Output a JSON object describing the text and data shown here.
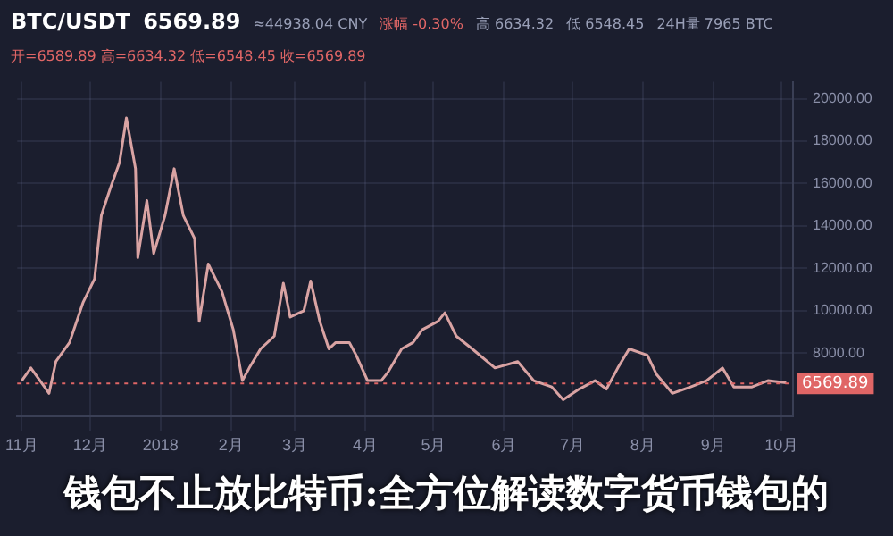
{
  "chart_data": {
    "type": "line",
    "title": "钱包不止放比特币:全方位解读数字货币钱包的",
    "annotations": [
      "BTC/USDT",
      "6569.89",
      "≈44938.04 CNY",
      "涨幅 -0.30%",
      "高 6634.32",
      "低 6548.45",
      "24H量 7965 BTC",
      "开=6589.89 高=6634.32 低=6548.45 收=6569.89"
    ],
    "x": [
      "2017-11-01",
      "2017-11-05",
      "2017-11-11",
      "2017-11-13",
      "2017-11-16",
      "2017-11-22",
      "2017-11-28",
      "2017-12-03",
      "2017-12-06",
      "2017-12-10",
      "2017-12-14",
      "2017-12-17",
      "2017-12-21",
      "2017-12-22",
      "2017-12-26",
      "2017-12-29",
      "2018-01-03",
      "2018-01-07",
      "2018-01-11",
      "2018-01-16",
      "2018-01-18",
      "2018-01-22",
      "2018-01-28",
      "2018-02-02",
      "2018-02-06",
      "2018-02-09",
      "2018-02-14",
      "2018-02-20",
      "2018-02-24",
      "2018-02-27",
      "2018-03-05",
      "2018-03-08",
      "2018-03-12",
      "2018-03-16",
      "2018-03-19",
      "2018-03-25",
      "2018-03-28",
      "2018-04-02",
      "2018-04-08",
      "2018-04-11",
      "2018-04-17",
      "2018-04-22",
      "2018-04-26",
      "2018-05-03",
      "2018-05-06",
      "2018-05-11",
      "2018-05-18",
      "2018-05-28",
      "2018-06-07",
      "2018-06-14",
      "2018-06-22",
      "2018-06-27",
      "2018-07-04",
      "2018-07-11",
      "2018-07-16",
      "2018-07-21",
      "2018-07-26",
      "2018-08-03",
      "2018-08-07",
      "2018-08-14",
      "2018-08-22",
      "2018-08-29",
      "2018-09-05",
      "2018-09-10",
      "2018-09-18",
      "2018-09-25",
      "2018-10-03"
    ],
    "series": [
      {
        "color": "#d9a3a3",
        "values": [
          6700,
          7300,
          6400,
          6100,
          7600,
          8500,
          10400,
          11500,
          14500,
          15800,
          17000,
          19100,
          16700,
          12500,
          15200,
          12700,
          14500,
          16700,
          14500,
          13400,
          9500,
          12200,
          10900,
          9100,
          6700,
          7300,
          8200,
          8800,
          11300,
          9700,
          10000,
          11400,
          9500,
          8200,
          8500,
          8500,
          7900,
          6700,
          6700,
          7100,
          8200,
          8500,
          9100,
          9500,
          9900,
          8800,
          8200,
          7300,
          7600,
          6700,
          6400,
          5800,
          6300,
          6700,
          6300,
          7300,
          8200,
          7900,
          7000,
          6100,
          6400,
          6700,
          7300,
          6400,
          6400,
          6700,
          6600
        ]
      }
    ],
    "xlim": [
      "2017-10-30",
      "2018-10-06"
    ],
    "xticks": [
      {
        "value": "2017-11-01",
        "label": "11月"
      },
      {
        "value": "2017-12-01",
        "label": "12月"
      },
      {
        "value": "2018-01-01",
        "label": "2018"
      },
      {
        "value": "2018-02-01",
        "label": "2月"
      },
      {
        "value": "2018-03-01",
        "label": "3月"
      },
      {
        "value": "2018-04-01",
        "label": "4月"
      },
      {
        "value": "2018-05-01",
        "label": "5月"
      },
      {
        "value": "2018-06-01",
        "label": "6月"
      },
      {
        "value": "2018-07-01",
        "label": "7月"
      },
      {
        "value": "2018-08-01",
        "label": "8月"
      },
      {
        "value": "2018-09-01",
        "label": "9月"
      },
      {
        "value": "2018-10-01",
        "label": "10月"
      }
    ],
    "ylim": [
      5000,
      20800
    ],
    "yticks": [
      {
        "value": 8000,
        "label": "8000.00"
      },
      {
        "value": 10000,
        "label": "10000.00"
      },
      {
        "value": 12000,
        "label": "12000.00"
      },
      {
        "value": 14000,
        "label": "14000.00"
      },
      {
        "value": 16000,
        "label": "16000.00"
      },
      {
        "value": 18000,
        "label": "18000.00"
      },
      {
        "value": 20000,
        "label": "20000.00"
      }
    ],
    "ref_lines": [
      {
        "axis": "y",
        "value": 6569.89,
        "label": "6569.89",
        "color": "#e06666",
        "line_style": "dotted"
      }
    ],
    "grid": true,
    "legend": false,
    "marker": "none",
    "line_style": "solid"
  }
}
